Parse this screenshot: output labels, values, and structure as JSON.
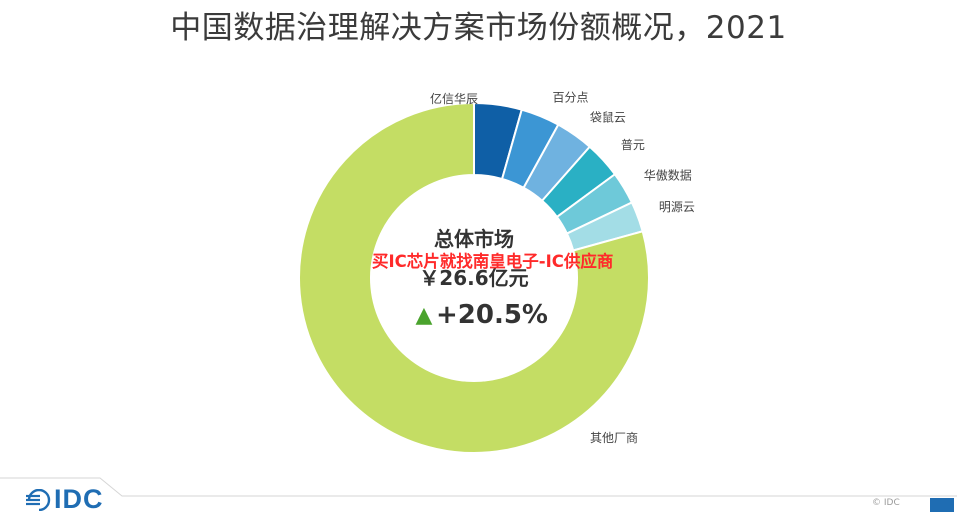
{
  "title": "中国数据治理解决方案市场份额概况，2021",
  "chart_data": {
    "type": "pie",
    "title": "中国数据治理解决方案市场份额概况，2021",
    "slices": [
      {
        "label": "亿信华辰",
        "value": 4.4,
        "color": "#0f5fa6"
      },
      {
        "label": "百分点",
        "value": 3.6,
        "color": "#3c96d4"
      },
      {
        "label": "袋鼠云",
        "value": 3.5,
        "color": "#6fb2e0"
      },
      {
        "label": "普元",
        "value": 3.4,
        "color": "#2ab0c4"
      },
      {
        "label": "华傲数据",
        "value": 3.0,
        "color": "#6ec9d9"
      },
      {
        "label": "明源云",
        "value": 2.8,
        "color": "#a3dde6"
      },
      {
        "label": "其他厂商",
        "value": 79.3,
        "color": "#c4dd64"
      }
    ],
    "center": {
      "title": "总体市场",
      "value": "￥26.6亿元",
      "growth_arrow": "▲",
      "growth": "+20.5%",
      "arrow_color": "#4aa32d"
    }
  },
  "watermark": "买IC芯片就找南皇电子-IC供应商",
  "footer": {
    "logo": "IDC",
    "copyright": "© IDC"
  }
}
